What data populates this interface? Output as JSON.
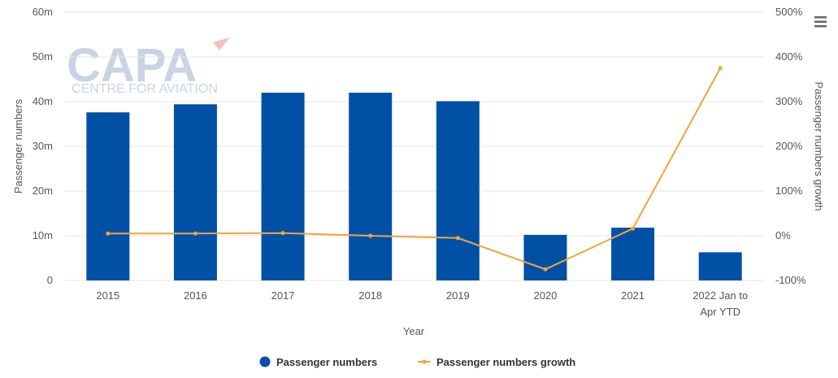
{
  "watermark": {
    "logo": "CAPA",
    "tagline": "CENTRE FOR AVIATION"
  },
  "menu_icon": "hamburger-menu-icon",
  "colors": {
    "bars": "#0051a5",
    "line": "#f5a33a"
  },
  "legend": [
    "Passenger numbers",
    "Passenger numbers growth"
  ],
  "chart_data": {
    "type": "bar",
    "categories": [
      "2015",
      "2016",
      "2017",
      "2018",
      "2019",
      "2020",
      "2021",
      "2022 Jan to Apr YTD"
    ],
    "xlabel": "Year",
    "ylabel": "Passenger numbers",
    "y2label": "Passenger numbers growth",
    "ylim": [
      0,
      60000000
    ],
    "y2lim": [
      -100,
      500
    ],
    "y_ticks": [
      "0",
      "10m",
      "20m",
      "30m",
      "40m",
      "50m",
      "60m"
    ],
    "y2_ticks": [
      "-100%",
      "0%",
      "100%",
      "200%",
      "300%",
      "400%",
      "500%"
    ],
    "legend_position": "bottom",
    "grid": true,
    "series": [
      {
        "name": "Passenger numbers",
        "type": "bar",
        "axis": "left",
        "values": [
          37600000,
          39400000,
          42000000,
          42000000,
          40100000,
          10200000,
          11800000,
          6300000
        ]
      },
      {
        "name": "Passenger numbers growth",
        "type": "line",
        "axis": "right",
        "values": [
          5,
          5,
          6,
          0,
          -5,
          -75,
          16,
          375
        ]
      }
    ]
  }
}
